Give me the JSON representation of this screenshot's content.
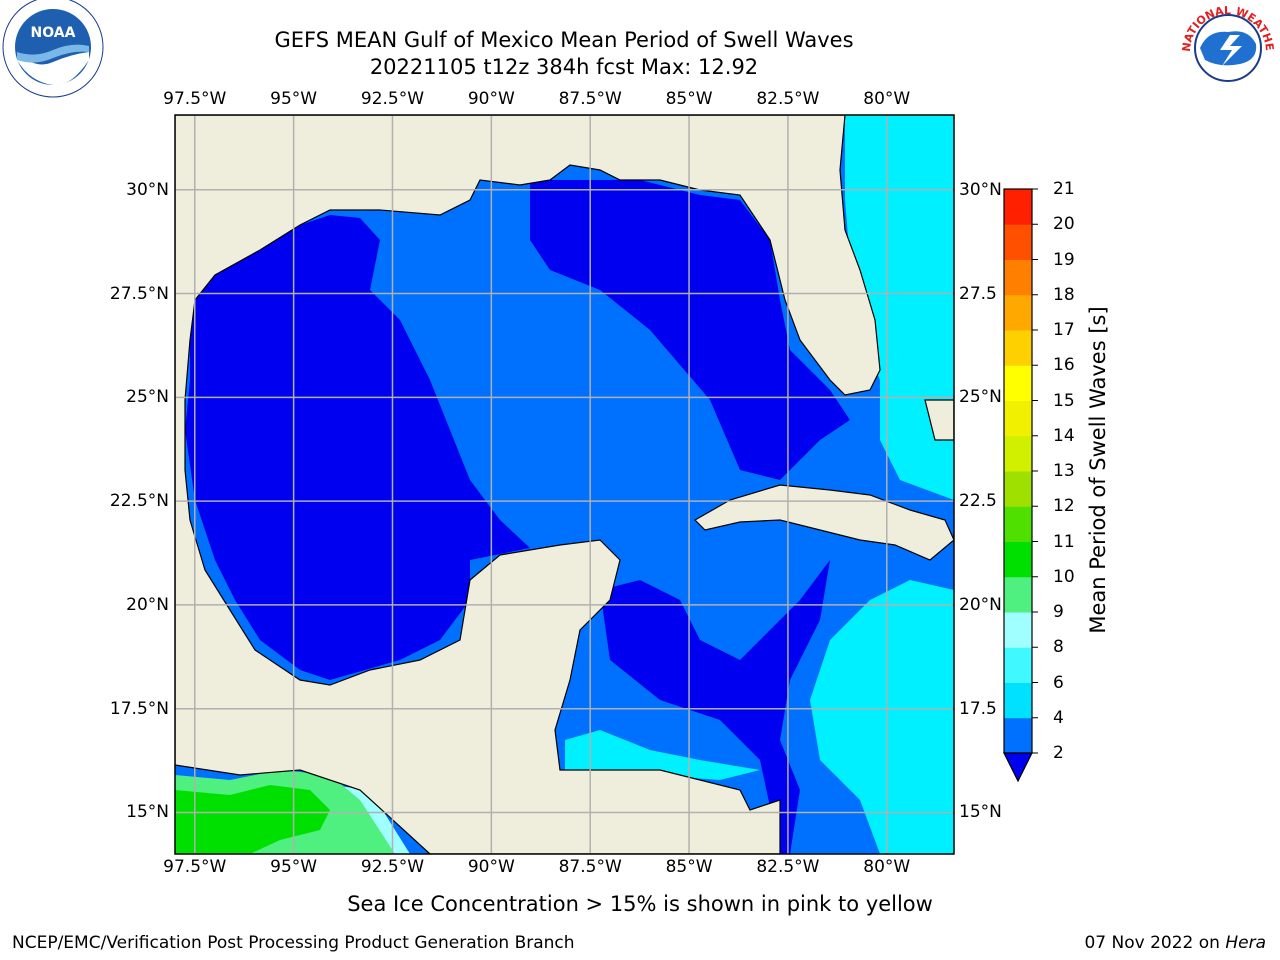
{
  "title": {
    "line1": "GEFS MEAN Gulf of Mexico Mean Period of Swell Waves",
    "line2": "20221105 t12z 384h fcst   Max: 12.92"
  },
  "logos": {
    "left": {
      "name": "noaa-logo",
      "text": "NOAA"
    },
    "right": {
      "name": "nws-logo",
      "text": "NATIONAL WEATHER SERVICE"
    }
  },
  "map": {
    "lon_ticks": [
      "97.5°W",
      "95°W",
      "92.5°W",
      "90°W",
      "87.5°W",
      "85°W",
      "82.5°W",
      "80°W"
    ],
    "lat_ticks": [
      "30°N",
      "27.5°N",
      "25°N",
      "22.5°N",
      "20°N",
      "17.5°N",
      "15°N"
    ],
    "lat_ticks_right": [
      "30°N",
      "27.5",
      "25°N",
      "22.5",
      "20°N",
      "17.5",
      "15°N"
    ],
    "lon_range": [
      -98,
      -78.3
    ],
    "lat_range": [
      14,
      31.8
    ]
  },
  "colorbar": {
    "label": "Mean Period of Swell Waves [s]",
    "levels": [
      "2",
      "4",
      "6",
      "8",
      "9",
      "10",
      "11",
      "12",
      "13",
      "14",
      "15",
      "16",
      "17",
      "18",
      "19",
      "20",
      "21"
    ],
    "colors": [
      "#0070ff",
      "#00e0ff",
      "#40f8ff",
      "#a0ffff",
      "#50f080",
      "#00e000",
      "#50e000",
      "#a0e000",
      "#d0f000",
      "#f0f000",
      "#ffff00",
      "#ffd000",
      "#ffa800",
      "#ff8000",
      "#ff5000",
      "#ff2000",
      "#ff0000"
    ],
    "under_color": "#0000f0"
  },
  "legend_colors": {
    "land": "#efeedc",
    "deep_blue": "#0000f0",
    "mid_blue": "#0070ff",
    "cyan": "#00f0ff",
    "grid": "#b0b0b0"
  },
  "footer": {
    "sea_ice_note": "Sea Ice Concentration > 15% is shown in pink to yellow",
    "org": "NCEP/EMC/Verification Post Processing Product Generation Branch",
    "date": "07 Nov 2022 on",
    "machine": "Hera"
  }
}
